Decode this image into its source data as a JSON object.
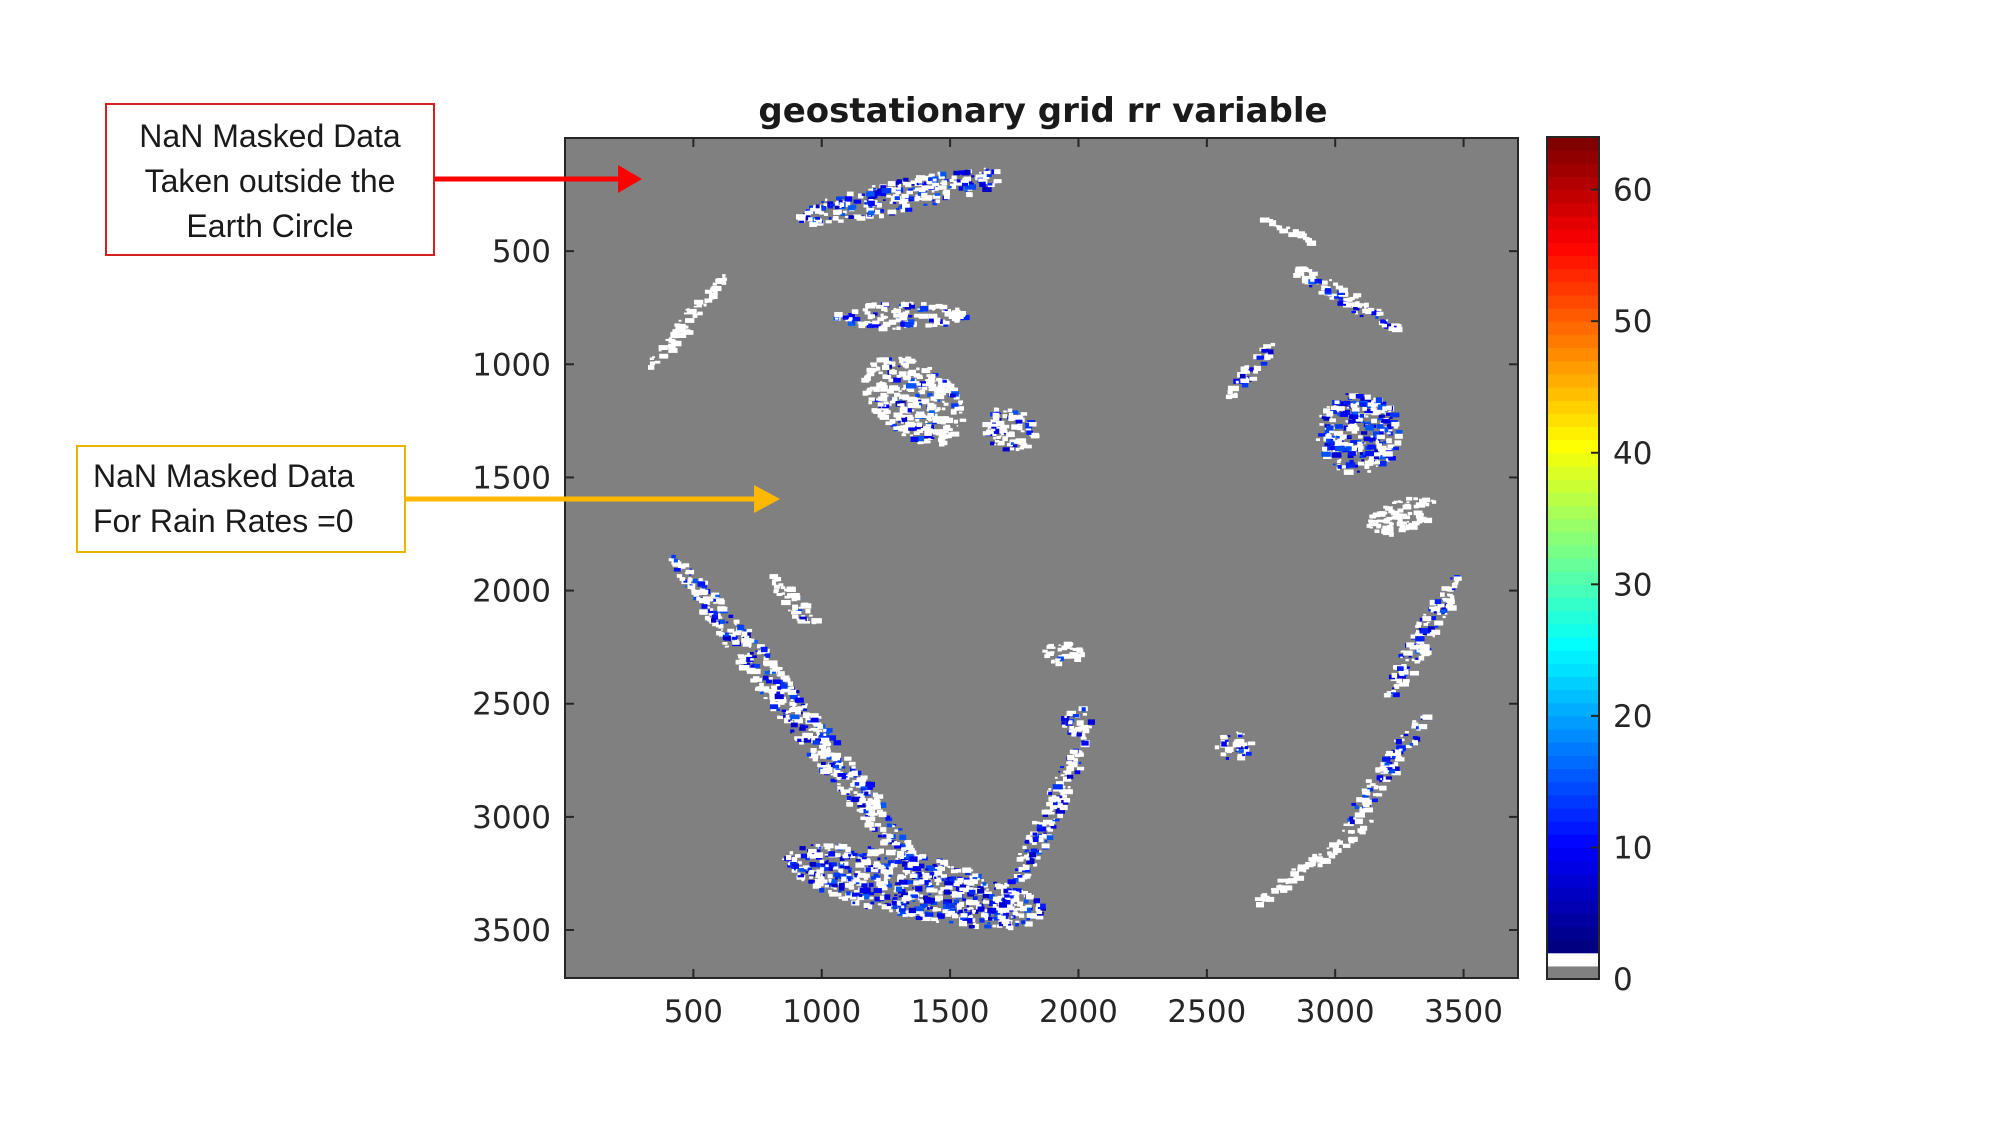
{
  "chart_data": {
    "type": "heatmap",
    "title": "geostationary grid rr variable",
    "xlabel": "",
    "ylabel": "",
    "xlim": [
      0,
      3712
    ],
    "ylim": [
      3712,
      0
    ],
    "x_ticks": [
      500,
      1000,
      1500,
      2000,
      2500,
      3000,
      3500
    ],
    "y_ticks": [
      500,
      1000,
      1500,
      2000,
      2500,
      3000,
      3500
    ],
    "colorbar": {
      "colormap": "jet",
      "range": [
        0,
        64
      ],
      "ticks": [
        0,
        10,
        20,
        30,
        40,
        50,
        60
      ]
    },
    "nan_color": "#808080",
    "zero_color": "#ffffff",
    "rain_regions": [
      {
        "cx": 1300,
        "cy": 250,
        "rx": 420,
        "ry": 70,
        "rot": -12,
        "rain": 0.45
      },
      {
        "cx": 1300,
        "cy": 780,
        "rx": 260,
        "ry": 60,
        "rot": 0,
        "rain": 0.25
      },
      {
        "cx": 1350,
        "cy": 1150,
        "rx": 220,
        "ry": 160,
        "rot": 35,
        "rain": 0.15
      },
      {
        "cx": 1720,
        "cy": 1280,
        "rx": 110,
        "ry": 90,
        "rot": 20,
        "rain": 0.2
      },
      {
        "cx": 470,
        "cy": 800,
        "rx": 240,
        "ry": 30,
        "rot": -50,
        "rain": 0.0
      },
      {
        "cx": 2650,
        "cy": 1030,
        "rx": 150,
        "ry": 30,
        "rot": -50,
        "rain": 0.3
      },
      {
        "cx": 3080,
        "cy": 1300,
        "rx": 160,
        "ry": 180,
        "rot": 0,
        "rain": 0.45
      },
      {
        "cx": 3030,
        "cy": 700,
        "rx": 250,
        "ry": 40,
        "rot": 30,
        "rain": 0.2
      },
      {
        "cx": 2800,
        "cy": 400,
        "rx": 110,
        "ry": 15,
        "rot": 25,
        "rain": 0.0
      },
      {
        "cx": 3250,
        "cy": 1660,
        "rx": 140,
        "ry": 70,
        "rot": -20,
        "rain": 0.0
      },
      {
        "cx": 3330,
        "cy": 2200,
        "rx": 280,
        "ry": 50,
        "rot": -60,
        "rain": 0.3
      },
      {
        "cx": 3180,
        "cy": 2800,
        "rx": 280,
        "ry": 40,
        "rot": -55,
        "rain": 0.35
      },
      {
        "cx": 900,
        "cy": 2550,
        "rx": 820,
        "ry": 70,
        "rot": 52,
        "rain": 0.3
      },
      {
        "cx": 1350,
        "cy": 3300,
        "rx": 520,
        "ry": 140,
        "rot": 12,
        "rain": 0.45
      },
      {
        "cx": 1850,
        "cy": 3050,
        "rx": 420,
        "ry": 45,
        "rot": -65,
        "rain": 0.3
      },
      {
        "cx": 1930,
        "cy": 2270,
        "rx": 80,
        "ry": 50,
        "rot": 0,
        "rain": 0.05
      },
      {
        "cx": 2600,
        "cy": 2680,
        "rx": 70,
        "ry": 60,
        "rot": 0,
        "rain": 0.3
      },
      {
        "cx": 880,
        "cy": 2050,
        "rx": 140,
        "ry": 35,
        "rot": 50,
        "rain": 0.05
      },
      {
        "cx": 2900,
        "cy": 3200,
        "rx": 300,
        "ry": 25,
        "rot": -35,
        "rain": 0.0
      },
      {
        "cx": 1990,
        "cy": 2570,
        "rx": 60,
        "ry": 60,
        "rot": 0,
        "rain": 0.3
      }
    ]
  },
  "annotations": {
    "red": {
      "lines": [
        "NaN Masked Data",
        "Taken outside the",
        "Earth Circle"
      ],
      "color": "#ff0000"
    },
    "yellow": {
      "lines": [
        "NaN Masked Data",
        "For Rain Rates  =0"
      ],
      "color": "#ffb800"
    }
  }
}
